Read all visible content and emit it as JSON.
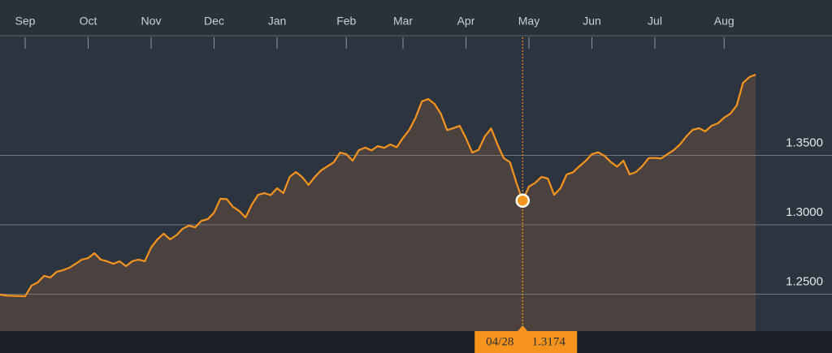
{
  "chart_data": {
    "type": "line",
    "categories": [
      null,
      null,
      null,
      null,
      "Sep",
      null,
      null,
      null,
      null,
      null,
      null,
      null,
      null,
      null,
      "Oct",
      null,
      null,
      null,
      null,
      null,
      null,
      null,
      null,
      null,
      "Nov",
      null,
      null,
      null,
      null,
      null,
      null,
      null,
      null,
      null,
      "Dec",
      null,
      null,
      null,
      null,
      null,
      null,
      null,
      null,
      null,
      "Jan",
      null,
      null,
      null,
      null,
      null,
      null,
      null,
      null,
      null,
      null,
      "Feb",
      null,
      null,
      null,
      null,
      null,
      null,
      null,
      null,
      "Mar",
      null,
      null,
      null,
      null,
      null,
      null,
      null,
      null,
      null,
      "Apr",
      null,
      null,
      null,
      null,
      null,
      null,
      null,
      null,
      null,
      "May",
      null,
      null,
      null,
      null,
      null,
      null,
      null,
      null,
      null,
      "Jun",
      null,
      null,
      null,
      null,
      null,
      null,
      null,
      null,
      null,
      "Jul",
      null,
      null,
      null,
      null,
      null,
      null,
      null,
      null,
      null,
      null,
      "Aug",
      null,
      null,
      null,
      null,
      null
    ],
    "values": [
      1.2497,
      1.249,
      1.2488,
      1.2487,
      1.2485,
      1.2561,
      1.2585,
      1.2632,
      1.262,
      1.2661,
      1.2673,
      1.269,
      1.2719,
      1.2749,
      1.276,
      1.2795,
      1.2749,
      1.2737,
      1.2719,
      1.2737,
      1.2702,
      1.2737,
      1.2749,
      1.2737,
      1.2836,
      1.2895,
      1.2936,
      1.2895,
      1.2924,
      1.2971,
      1.2994,
      1.2982,
      1.3029,
      1.3041,
      1.3088,
      1.3187,
      1.3185,
      1.3129,
      1.3099,
      1.3053,
      1.3146,
      1.3216,
      1.3228,
      1.3214,
      1.3263,
      1.3228,
      1.3345,
      1.338,
      1.3343,
      1.3287,
      1.3345,
      1.3392,
      1.3421,
      1.345,
      1.352,
      1.3509,
      1.3462,
      1.3538,
      1.3556,
      1.3536,
      1.3567,
      1.3554,
      1.3579,
      1.3558,
      1.3626,
      1.3684,
      1.3772,
      1.3889,
      1.3906,
      1.3871,
      1.3801,
      1.3682,
      1.3696,
      1.3713,
      1.3624,
      1.352,
      1.354,
      1.3637,
      1.3694,
      1.3579,
      1.348,
      1.345,
      1.3304,
      1.3174,
      1.3275,
      1.3302,
      1.3345,
      1.3333,
      1.3216,
      1.3263,
      1.3363,
      1.3378,
      1.3421,
      1.346,
      1.3509,
      1.3522,
      1.3497,
      1.3452,
      1.3419,
      1.3462,
      1.3363,
      1.338,
      1.3423,
      1.348,
      1.3482,
      1.3478,
      1.3509,
      1.3538,
      1.3579,
      1.3637,
      1.3684,
      1.3696,
      1.3673,
      1.3713,
      1.3731,
      1.3772,
      1.3801,
      1.386,
      1.4023,
      1.4064,
      1.4082
    ],
    "color": "#f7941d",
    "area_color": "#4b423f",
    "ylim": [
      1.2234,
      1.4257
    ],
    "yticks": [
      {
        "value": 1.25,
        "label": "1.2500"
      },
      {
        "value": 1.3,
        "label": "1.3000"
      },
      {
        "value": 1.35,
        "label": "1.3500"
      }
    ],
    "grid": true,
    "hover": {
      "category": "04/28",
      "value": 1.3174
    }
  }
}
